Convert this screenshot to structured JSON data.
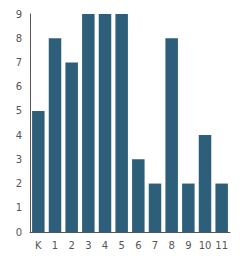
{
  "chart_data": {
    "type": "bar",
    "categories": [
      "K",
      "1",
      "2",
      "3",
      "4",
      "5",
      "6",
      "7",
      "8",
      "9",
      "10",
      "11"
    ],
    "values": [
      5,
      8,
      7,
      9,
      9,
      9,
      3,
      2,
      8,
      2,
      4,
      2
    ],
    "color": "#2d5f7a",
    "ylim": [
      0,
      9
    ],
    "yticks": [
      0,
      1,
      2,
      3,
      4,
      5,
      6,
      7,
      8,
      9
    ],
    "grid": false
  }
}
